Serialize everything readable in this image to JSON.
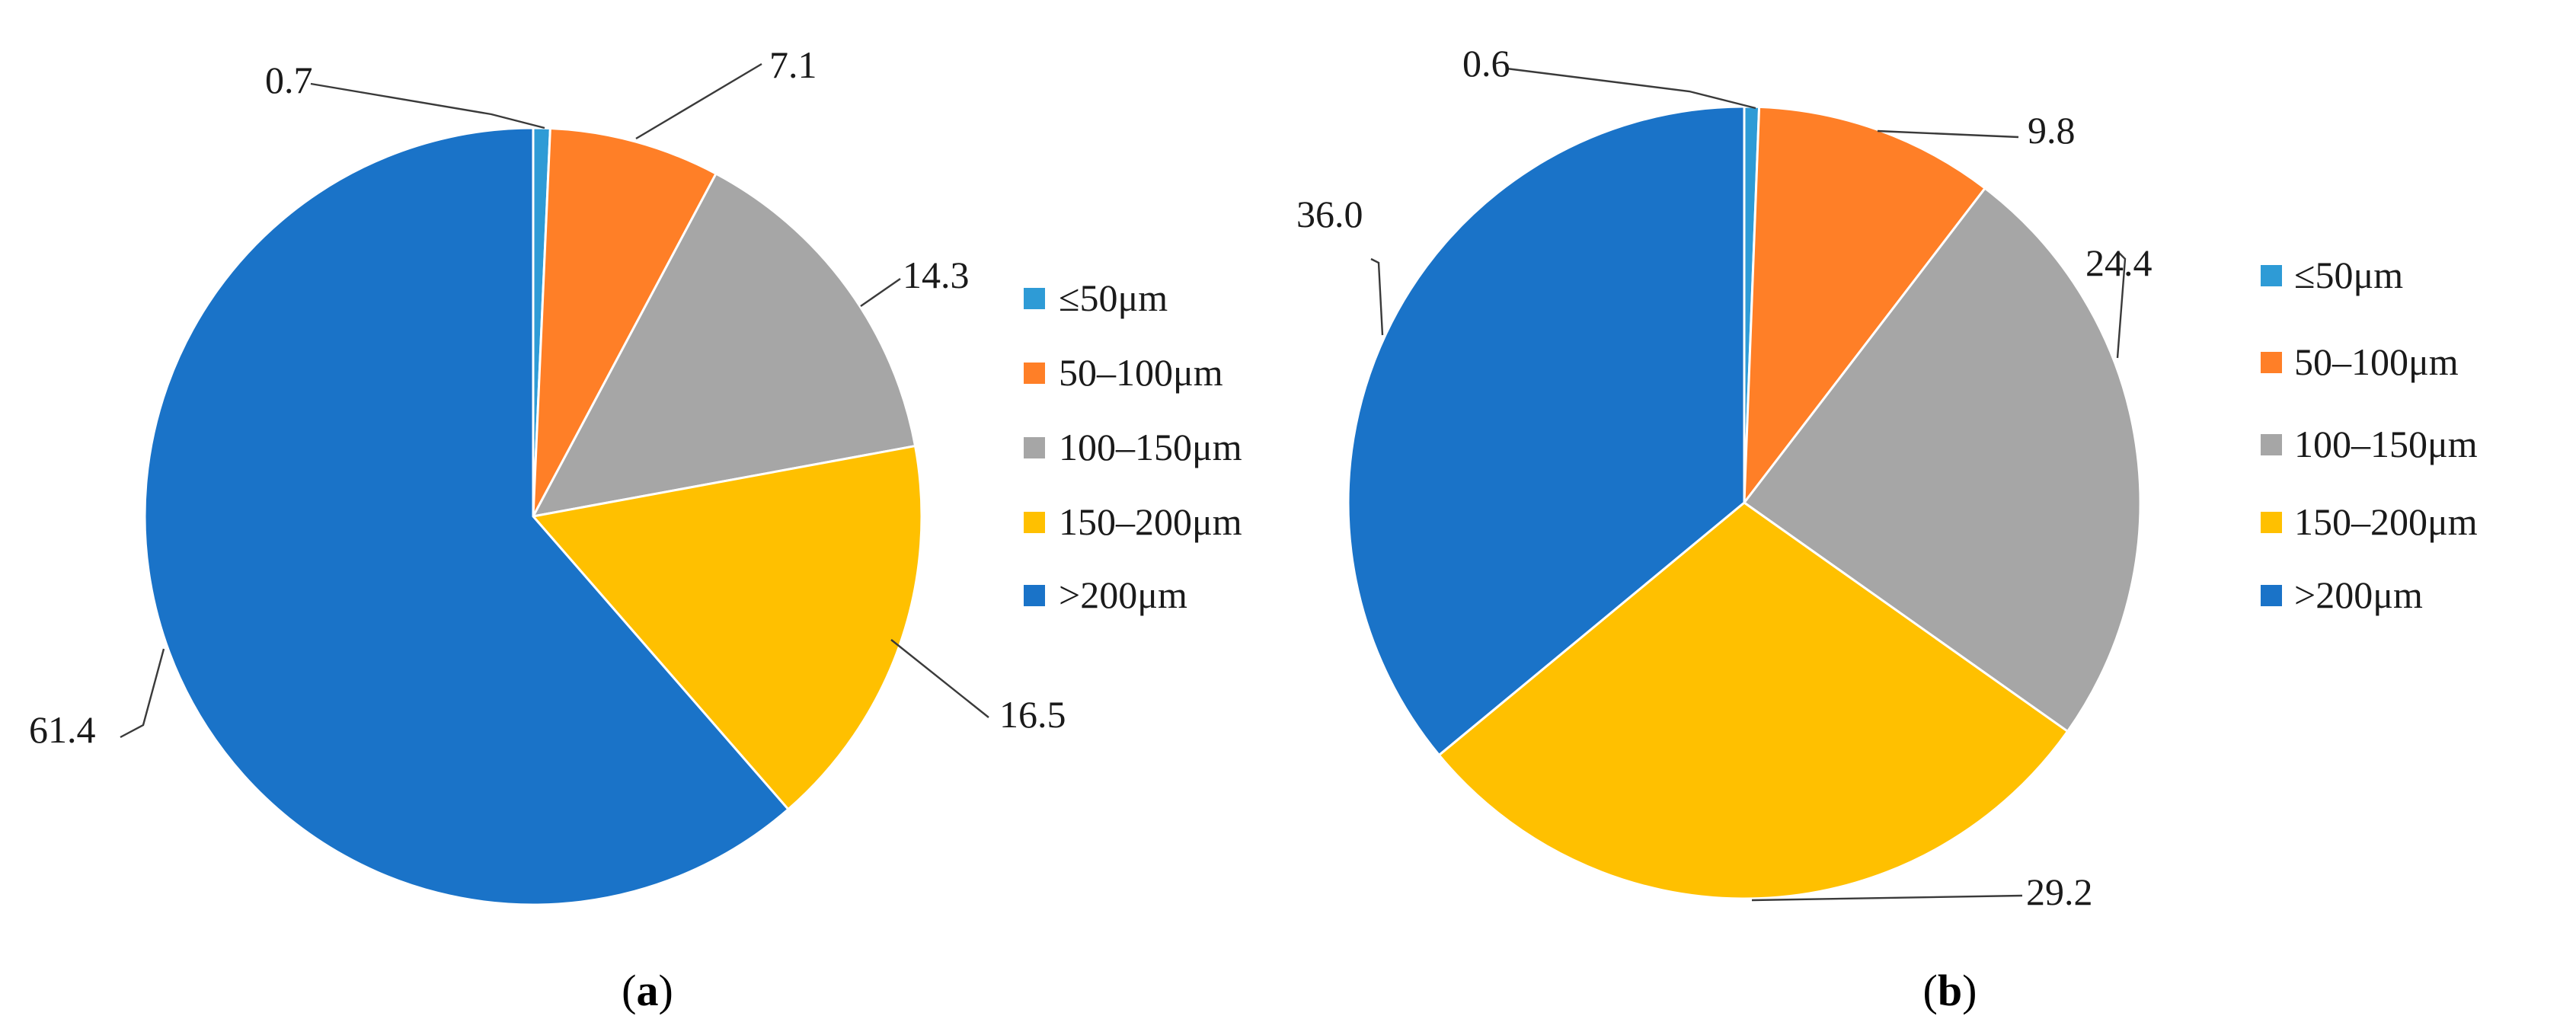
{
  "colors": {
    "le50": "#2E9BD6",
    "50_100": "#FF7F27",
    "100_150": "#A6A6A6",
    "150_200": "#FFC000",
    "gt200": "#1A73C8"
  },
  "chart_data": [
    {
      "type": "pie",
      "panel": "a",
      "caption": {
        "open": "(",
        "letter": "a",
        "close": ")"
      },
      "categories": [
        "≤50μm",
        "50–100μm",
        "100–150μm",
        "150–200μm",
        ">200μm"
      ],
      "values": [
        0.7,
        7.1,
        14.3,
        16.5,
        61.4
      ],
      "value_labels": [
        "0.7",
        "7.1",
        "14.3",
        "16.5",
        "61.4"
      ],
      "legend": [
        "≤50μm",
        "50–100μm",
        "100–150μm",
        "150–200μm",
        ">200μm"
      ],
      "legend_placement": "right"
    },
    {
      "type": "pie",
      "panel": "b",
      "caption": {
        "open": "(",
        "letter": "b",
        "close": ")"
      },
      "categories": [
        "≤50μm",
        "50–100μm",
        "100–150μm",
        "150–200μm",
        ">200μm"
      ],
      "values": [
        0.6,
        9.8,
        24.4,
        29.2,
        36.0
      ],
      "value_labels": [
        "0.6",
        "9.8",
        "24.4",
        "29.2",
        "36.0"
      ],
      "legend": [
        "≤50μm",
        "50–100μm",
        "100–150μm",
        "150–200μm",
        ">200μm"
      ],
      "legend_placement": "right"
    }
  ]
}
